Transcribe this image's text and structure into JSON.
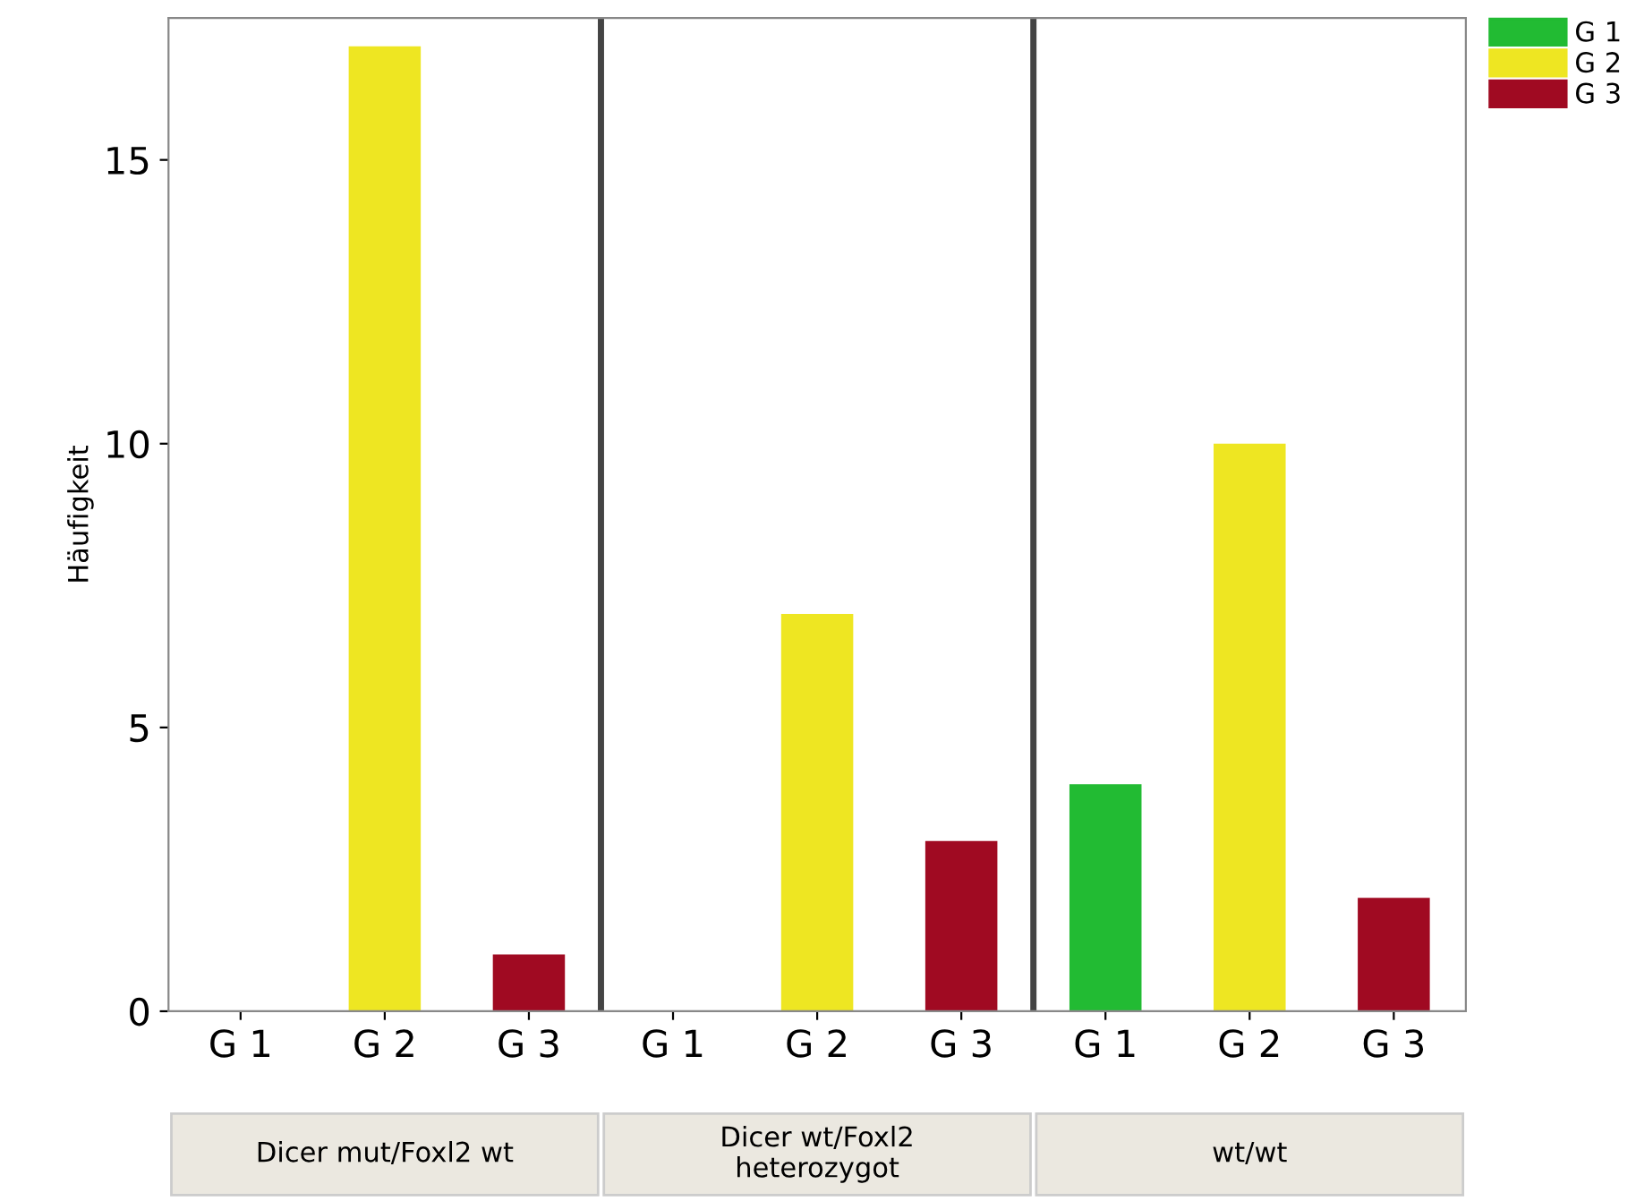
{
  "chart_data": {
    "type": "bar",
    "ylabel": "Häufigkeit",
    "categories": [
      "G 1",
      "G 2",
      "G 3",
      "G 1",
      "G 2",
      "G 3",
      "G 1",
      "G 2",
      "G 3"
    ],
    "series": [
      {
        "name": "G 1",
        "color": "#22bb33",
        "values": [
          0,
          null,
          null,
          0,
          null,
          null,
          4,
          null,
          null
        ]
      },
      {
        "name": "G 2",
        "color": "#eee622",
        "values": [
          null,
          17,
          null,
          null,
          7,
          null,
          null,
          10,
          null
        ]
      },
      {
        "name": "G 3",
        "color": "#a00a22",
        "values": [
          null,
          null,
          1,
          null,
          null,
          3,
          null,
          null,
          2
        ]
      }
    ],
    "ylim": [
      0,
      17.5
    ],
    "yticks": [
      0,
      5,
      10,
      15
    ],
    "grid": false,
    "legend": "top right",
    "annotations": [
      "Dicer mut/Foxl2 wt",
      "Dicer wt/Foxl2\nheterozygot",
      "wt/wt"
    ]
  }
}
